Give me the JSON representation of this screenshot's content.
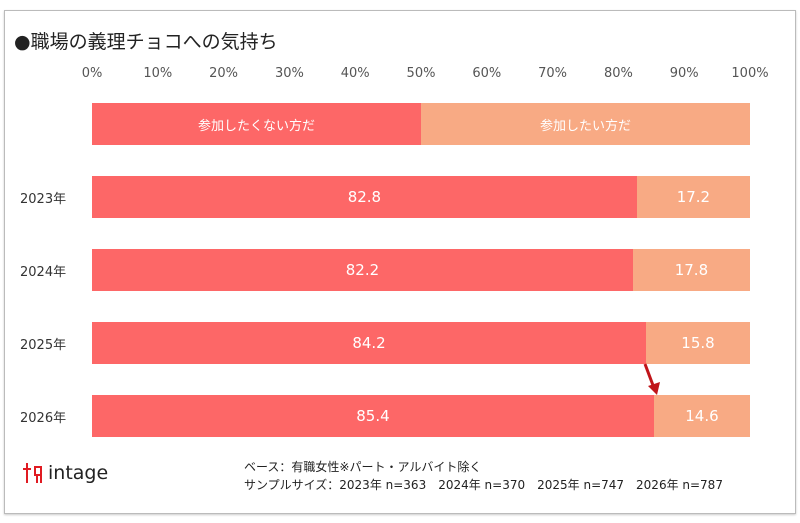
{
  "chart_data": {
    "type": "bar",
    "stacked": true,
    "orientation": "horizontal",
    "title": "●職場の義理チョコへの気持ち",
    "categories": [
      "2023年",
      "2024年",
      "2025年",
      "2026年"
    ],
    "series": [
      {
        "name": "参加したくない方だ",
        "values": [
          82.8,
          82.2,
          84.2,
          85.4
        ],
        "color": "#fd6767"
      },
      {
        "name": "参加したい方だ",
        "values": [
          17.2,
          17.8,
          15.8,
          14.6
        ],
        "color": "#f8aa84"
      }
    ],
    "xticks": [
      "0%",
      "10%",
      "20%",
      "30%",
      "40%",
      "50%",
      "60%",
      "70%",
      "80%",
      "90%",
      "100%"
    ],
    "xlim": [
      0,
      100
    ],
    "legend": "top"
  },
  "footer": {
    "base": "ベース：有職女性※パート・アルバイト除く",
    "sample": "サンプルサイズ：2023年 n=363　2024年 n=370　2025年 n=747　2026年 n=787"
  },
  "logo": {
    "text": "intage"
  },
  "colors": {
    "arrow": "#c0151a"
  }
}
